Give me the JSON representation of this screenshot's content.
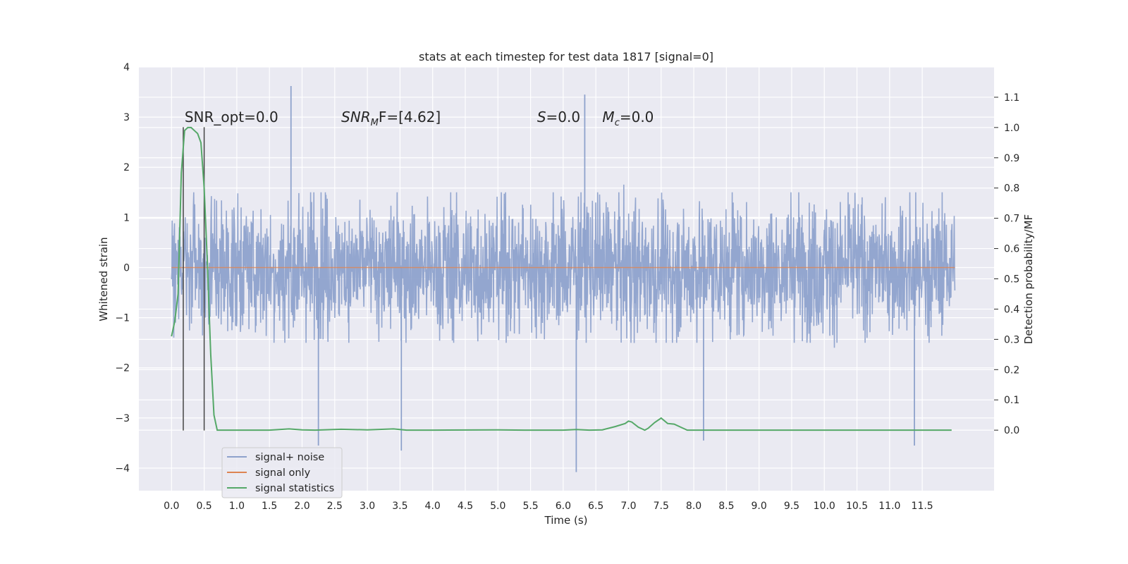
{
  "chart_data": {
    "type": "line",
    "title": "stats at each timestep for test data 1817 [signal=0]",
    "xlabel": "Time (s)",
    "ylabel": "Whitened strain",
    "y2label": "Detection probability/MF",
    "xlim": [
      -0.5,
      12.6
    ],
    "ylim": [
      -4.45,
      4.0
    ],
    "y2lim": [
      -0.2,
      1.2
    ],
    "xticks": [
      0.0,
      0.5,
      1.0,
      1.5,
      2.0,
      2.5,
      3.0,
      3.5,
      4.0,
      4.5,
      5.0,
      5.5,
      6.0,
      6.5,
      7.0,
      7.5,
      8.0,
      8.5,
      9.0,
      9.5,
      10.0,
      10.5,
      11.0,
      11.5
    ],
    "xtick_labels": [
      "0.0",
      "0.5",
      "1.0",
      "1.5",
      "2.0",
      "2.5",
      "3.0",
      "3.5",
      "4.0",
      "4.5",
      "5.0",
      "5.5",
      "6.0",
      "6.5",
      "7.0",
      "7.5",
      "8.0",
      "8.5",
      "9.0",
      "9.5",
      "10.0",
      "10.5",
      "11.0",
      "11.5"
    ],
    "yticks": [
      -4,
      -3,
      -2,
      -1,
      0,
      1,
      2,
      3,
      4
    ],
    "ytick_labels": [
      "−4",
      "−3",
      "−2",
      "−1",
      "0",
      "1",
      "2",
      "3",
      "4"
    ],
    "y2ticks": [
      0.0,
      0.1,
      0.2,
      0.3,
      0.4,
      0.5,
      0.6,
      0.7,
      0.8,
      0.9,
      1.0,
      1.1
    ],
    "y2tick_labels": [
      "0.0",
      "0.1",
      "0.2",
      "0.3",
      "0.4",
      "0.5",
      "0.6",
      "0.7",
      "0.8",
      "0.9",
      "1.0",
      "1.1"
    ],
    "grid": true,
    "legend_position": "lower-left",
    "series": [
      {
        "name": "signal+ noise",
        "color": "#8ea2cc",
        "axis": "left",
        "x_range": [
          0.0,
          12.0
        ],
        "typical_range": [
          -1.5,
          1.5
        ],
        "extremes": [
          {
            "x": 1.83,
            "y": 3.62
          },
          {
            "x": 6.33,
            "y": 3.45
          },
          {
            "x": 6.2,
            "y": -4.08
          },
          {
            "x": 3.52,
            "y": -3.65
          },
          {
            "x": 2.25,
            "y": -3.55
          },
          {
            "x": 11.38,
            "y": -3.55
          },
          {
            "x": 8.15,
            "y": -3.45
          }
        ]
      },
      {
        "name": "signal only",
        "color": "#dd8452",
        "axis": "left",
        "x": [
          0.0,
          12.0
        ],
        "y": [
          0.0,
          0.0
        ]
      },
      {
        "name": "signal statistics",
        "color": "#55a868",
        "axis": "right",
        "x": [
          0.0,
          0.05,
          0.1,
          0.15,
          0.2,
          0.25,
          0.3,
          0.35,
          0.4,
          0.45,
          0.5,
          0.55,
          0.6,
          0.65,
          0.7,
          0.75,
          0.8,
          1.0,
          1.5,
          1.8,
          2.0,
          2.2,
          2.6,
          3.0,
          3.4,
          3.6,
          4.0,
          5.0,
          5.4,
          6.0,
          6.2,
          6.4,
          6.6,
          6.8,
          6.95,
          7.0,
          7.05,
          7.15,
          7.25,
          7.3,
          7.4,
          7.5,
          7.6,
          7.7,
          7.8,
          7.9,
          8.0,
          8.5,
          9.0,
          10.0,
          11.0,
          11.5,
          11.95
        ],
        "y": [
          0.31,
          0.36,
          0.45,
          0.85,
          0.99,
          1.0,
          1.0,
          0.99,
          0.98,
          0.95,
          0.8,
          0.55,
          0.25,
          0.05,
          0.0,
          0.0,
          0.0,
          0.0,
          0.0,
          0.004,
          0.001,
          0.0,
          0.003,
          0.001,
          0.004,
          0.0,
          0.0,
          0.001,
          0.0,
          0.0,
          0.002,
          0.0,
          0.001,
          0.012,
          0.022,
          0.03,
          0.027,
          0.01,
          0.0,
          0.006,
          0.025,
          0.04,
          0.022,
          0.02,
          0.01,
          0.0,
          0.0,
          0.0,
          0.0,
          0.0,
          0.0,
          0.0,
          0.0
        ]
      }
    ],
    "vertical_markers": [
      {
        "x": 0.18,
        "y_top": 2.8,
        "y_bottom": -3.25,
        "color": "#444444"
      },
      {
        "x": 0.5,
        "y_top": 2.8,
        "y_bottom": -3.25,
        "color": "#444444"
      }
    ],
    "annotations": [
      {
        "id": "snr-opt",
        "x": 0.2,
        "y": 2.9,
        "text": "SNR_opt=0.0"
      },
      {
        "id": "snr-mf",
        "x": 2.6,
        "y": 2.9,
        "base": "SNR",
        "sub": "M",
        "rest": "F=[4.62]"
      },
      {
        "id": "s-val",
        "x": 5.6,
        "y": 2.9,
        "base": "S",
        "rest": "=0.0"
      },
      {
        "id": "mc-val",
        "x": 6.6,
        "y": 2.9,
        "base": "M",
        "sub": "c",
        "rest": "=0.0"
      }
    ]
  }
}
